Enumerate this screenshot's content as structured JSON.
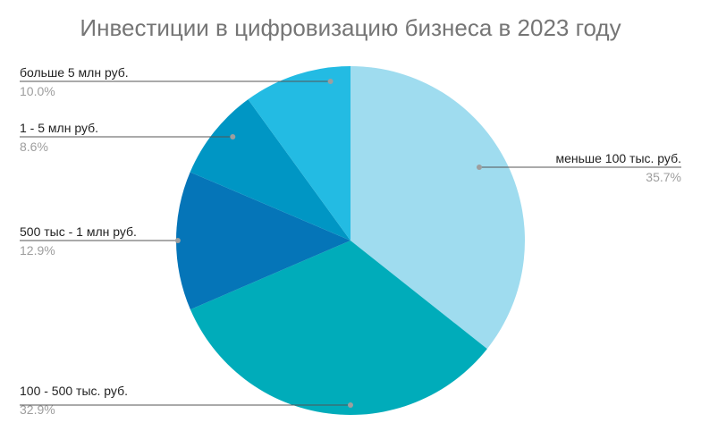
{
  "chart_data": {
    "type": "pie",
    "title": "Инвестиции в цифровизацию бизнеса в 2023 году",
    "slices": [
      {
        "label": "меньше 100 тыс. руб.",
        "value": 35.7,
        "pct_label": "35.7%",
        "color": "#9fdcef"
      },
      {
        "label": "100 - 500 тыс. руб.",
        "value": 32.9,
        "pct_label": "32.9%",
        "color": "#00acba"
      },
      {
        "label": "500 тыс - 1 млн руб.",
        "value": 12.9,
        "pct_label": "12.9%",
        "color": "#0575b8"
      },
      {
        "label": "1 - 5 млн руб.",
        "value": 8.6,
        "pct_label": "8.6%",
        "color": "#0096c4"
      },
      {
        "label": "больше 5 млн руб.",
        "value": 10.0,
        "pct_label": "10.0%",
        "color": "#23bbe3"
      }
    ]
  }
}
